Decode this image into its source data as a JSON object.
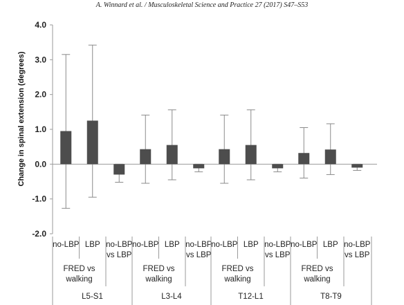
{
  "header": {
    "citation": "A. Winnard et al. / Musculoskeletal Science and Practice 27 (2017) S47–S53"
  },
  "chart_data": {
    "type": "bar",
    "ylabel": "Change in spinal extension (degrees)",
    "ylim": [
      -2.0,
      4.0
    ],
    "yticks": [
      "4.0",
      "3.0",
      "2.0",
      "1.0",
      "0.0",
      "-1.0",
      "-2.0"
    ],
    "ytick_values": [
      4,
      3,
      2,
      1,
      0,
      -1,
      -2
    ],
    "groups": [
      {
        "label": "L5-S1",
        "fred_label": [
          "FRED vs",
          "walking"
        ],
        "bars": [
          {
            "label": [
              "no-LBP"
            ],
            "value": 0.95,
            "lower": -1.27,
            "upper": 3.15
          },
          {
            "label": [
              "LBP"
            ],
            "value": 1.25,
            "lower": -0.95,
            "upper": 3.42
          },
          {
            "label": [
              "no-LBP",
              "vs LBP"
            ],
            "value": -0.3,
            "lower": -0.52,
            "upper": 0.0
          }
        ]
      },
      {
        "label": "L3-L4",
        "fred_label": [
          "FRED vs",
          "walking"
        ],
        "bars": [
          {
            "label": [
              "no-LBP"
            ],
            "value": 0.43,
            "lower": -0.55,
            "upper": 1.41
          },
          {
            "label": [
              "LBP"
            ],
            "value": 0.55,
            "lower": -0.45,
            "upper": 1.56
          },
          {
            "label": [
              "no-LBP",
              "vs LBP"
            ],
            "value": -0.12,
            "lower": -0.22,
            "upper": 0.0
          }
        ]
      },
      {
        "label": "T12-L1",
        "fred_label": [
          "FRED vs",
          "walking"
        ],
        "bars": [
          {
            "label": [
              "no-LBP"
            ],
            "value": 0.43,
            "lower": -0.55,
            "upper": 1.41
          },
          {
            "label": [
              "LBP"
            ],
            "value": 0.55,
            "lower": -0.45,
            "upper": 1.56
          },
          {
            "label": [
              "no-LBP",
              "vs LBP"
            ],
            "value": -0.12,
            "lower": -0.22,
            "upper": 0.0
          }
        ]
      },
      {
        "label": "T8-T9",
        "fred_label": [
          "FRED vs",
          "walking"
        ],
        "bars": [
          {
            "label": [
              "no-LBP"
            ],
            "value": 0.32,
            "lower": -0.4,
            "upper": 1.05
          },
          {
            "label": [
              "LBP"
            ],
            "value": 0.42,
            "lower": -0.3,
            "upper": 1.16
          },
          {
            "label": [
              "no-LBP",
              "vs LBP"
            ],
            "value": -0.1,
            "lower": -0.18,
            "upper": 0.0
          }
        ]
      }
    ],
    "bar_color": "#4d4d4d",
    "errorbar_color": "#8a8a8a",
    "axis_color": "#9a9a9a",
    "grid": false,
    "legend": false
  }
}
